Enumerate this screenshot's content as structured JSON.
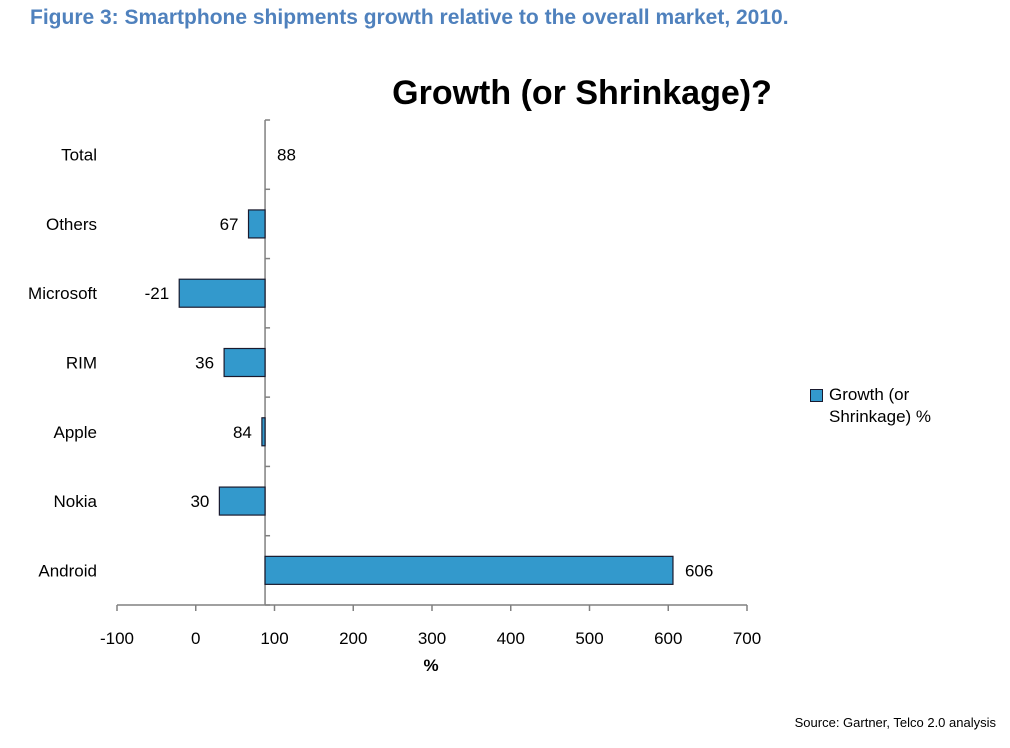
{
  "figure_caption": "Figure 3: Smartphone shipments growth relative to the overall market, 2010.",
  "source_note": "Source: Gartner, Telco 2.0 analysis",
  "chart_data": {
    "type": "bar",
    "orientation": "horizontal",
    "title": "Growth (or Shrinkage)?",
    "xlabel": "%",
    "ylabel": "",
    "categories": [
      "Total",
      "Others",
      "Microsoft",
      "RIM",
      "Apple",
      "Nokia",
      "Android"
    ],
    "series": [
      {
        "name": "Growth (or Shrinkage) %",
        "values": [
          88,
          67,
          -21,
          36,
          84,
          30,
          606
        ]
      }
    ],
    "bar_base": 88,
    "xlim": [
      -100,
      700
    ],
    "xticks": [
      -100,
      0,
      100,
      200,
      300,
      400,
      500,
      600,
      700
    ],
    "grid": false,
    "legend_position": "right",
    "bar_color": "#3399cc",
    "bar_edge_color": "#1a1a2e"
  }
}
